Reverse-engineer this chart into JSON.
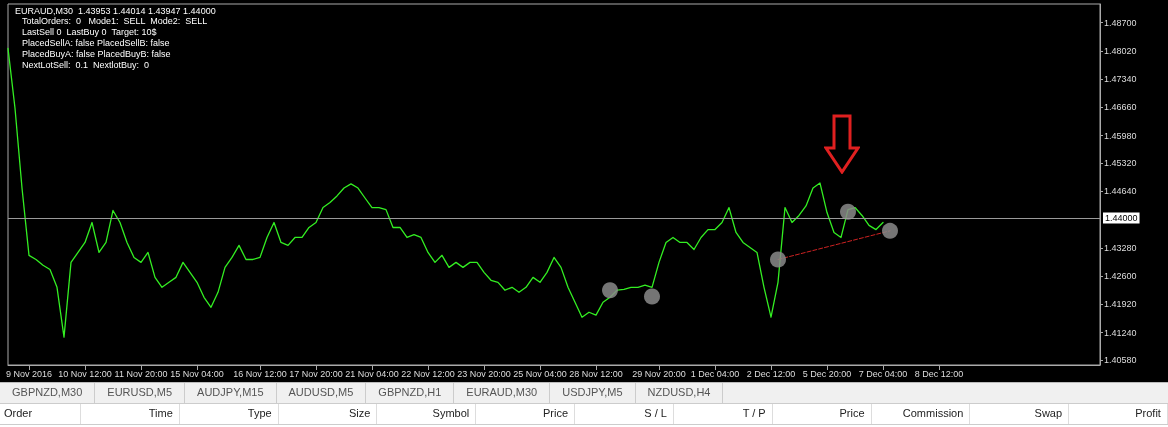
{
  "chart_data": {
    "type": "line",
    "title": "EURAUD,M30  1.43953 1.44014 1.43947 1.44000",
    "annotations": [
      "TotalOrders:  0   Mode1:  SELL  Mode2:  SELL",
      "LastSell 0  LastBuy 0  Target: 10$",
      "PlacedSellA: false PlacedSellB: false",
      "PlacedBuyA: false PlacedBuyB: false",
      "NextLotSell:  0.1  NextlotBuy:  0",
      "GBPNZD,M30",
      "EURUSD,M5",
      "AUDJPY,M15",
      "AUDUSD,M5",
      "GBPNZD,H1",
      "EURAUD,M30",
      "USDJPY,M5",
      "NZDUSD,H4",
      "Order",
      "Time",
      "Type",
      "Size",
      "Symbol",
      "Price",
      "S / L",
      "T / P",
      "Price",
      "Commission",
      "Swap",
      "Profit"
    ],
    "categories": [
      null,
      null,
      null,
      "9 Nov 2016",
      null,
      null,
      null,
      null,
      null,
      null,
      null,
      "10 Nov 12:00",
      null,
      null,
      null,
      null,
      null,
      null,
      null,
      "11 Nov 20:00",
      null,
      null,
      null,
      null,
      null,
      null,
      null,
      "15 Nov 04:00",
      null,
      null,
      null,
      null,
      null,
      null,
      null,
      null,
      "16 Nov 12:00",
      null,
      null,
      null,
      null,
      null,
      null,
      null,
      "17 Nov 20:00",
      null,
      null,
      null,
      null,
      null,
      null,
      null,
      "21 Nov 04:00",
      null,
      null,
      null,
      null,
      null,
      null,
      null,
      "22 Nov 12:00",
      null,
      null,
      null,
      null,
      null,
      null,
      null,
      "23 Nov 20:00",
      null,
      null,
      null,
      null,
      null,
      null,
      null,
      "25 Nov 04:00",
      null,
      null,
      null,
      null,
      null,
      null,
      null,
      "28 Nov 12:00",
      null,
      null,
      null,
      null,
      null,
      null,
      null,
      null,
      "29 Nov 20:00",
      null,
      null,
      null,
      null,
      null,
      null,
      null,
      "1 Dec 04:00",
      null,
      null,
      null,
      null,
      null,
      null,
      null,
      "2 Dec 12:00",
      null,
      null,
      null,
      null,
      null,
      null,
      null,
      "5 Dec 20:00",
      null,
      null,
      null,
      null,
      null,
      null,
      null,
      "7 Dec 04:00",
      null,
      null,
      null,
      null,
      null,
      null,
      null,
      "8 Dec 12:00",
      null,
      null,
      null,
      null,
      null,
      null,
      null,
      null,
      null,
      null,
      null,
      null,
      null,
      null,
      null,
      null,
      null,
      null,
      null,
      null,
      null,
      null,
      null
    ],
    "series": [
      {
        "color": "#33ee22",
        "values": [
          1.4808,
          1.4664,
          1.4472,
          1.431,
          1.43,
          1.4286,
          1.4276,
          1.4233,
          1.4113,
          1.4293,
          1.4317,
          1.4341,
          1.4389,
          1.4317,
          1.4341,
          1.4418,
          1.4389,
          1.4341,
          1.4305,
          1.4293,
          1.4317,
          1.4257,
          1.4233,
          1.4245,
          1.4257,
          1.4293,
          1.4269,
          1.4245,
          1.4209,
          1.4185,
          1.4221,
          1.4281,
          1.4305,
          1.4334,
          1.43,
          1.43,
          1.4305,
          1.4353,
          1.4389,
          1.4341,
          1.4334,
          1.4353,
          1.4353,
          1.4377,
          1.4389,
          1.4425,
          1.4437,
          1.4453,
          1.4472,
          1.4482,
          1.4472,
          1.4448,
          1.4425,
          1.4425,
          1.442,
          1.4377,
          1.4377,
          1.4353,
          1.436,
          1.4353,
          1.4317,
          1.4293,
          1.431,
          1.4281,
          1.4293,
          1.4281,
          1.4293,
          1.4293,
          1.4269,
          1.425,
          1.4245,
          1.4226,
          1.4233,
          1.4221,
          1.4233,
          1.4257,
          1.4245,
          1.4269,
          1.4305,
          1.4281,
          1.4233,
          1.4197,
          1.4161,
          1.4173,
          1.4166,
          1.4197,
          1.4209,
          1.4226,
          1.4228,
          1.4233,
          1.4233,
          1.4238,
          1.4233,
          1.4293,
          1.4341,
          1.4353,
          1.4341,
          1.4341,
          1.4324,
          1.4353,
          1.4372,
          1.4372,
          1.4389,
          1.4425,
          1.4365,
          1.4341,
          1.4329,
          1.4317,
          1.4233,
          1.4161,
          1.4245,
          1.4425,
          1.4389,
          1.4406,
          1.4429,
          1.4472,
          1.4484,
          1.4413,
          1.4365,
          1.4353,
          1.442,
          1.4425,
          1.4406,
          1.4382,
          1.4372,
          1.4389,
          null,
          null,
          null,
          null,
          null,
          null,
          null,
          null,
          null,
          null,
          null,
          null,
          null,
          null,
          null,
          null,
          null,
          null,
          null,
          null,
          null,
          null,
          null,
          null,
          null,
          null,
          null,
          null,
          null,
          null,
          null
        ]
      },
      {
        "type": "line",
        "color": "#cc2222",
        "line_style": "dashed",
        "values": [
          null,
          null,
          null,
          null,
          null,
          null,
          null,
          null,
          null,
          null,
          null,
          null,
          null,
          null,
          null,
          null,
          null,
          null,
          null,
          null,
          null,
          null,
          null,
          null,
          null,
          null,
          null,
          null,
          null,
          null,
          null,
          null,
          null,
          null,
          null,
          null,
          null,
          null,
          null,
          null,
          null,
          null,
          null,
          null,
          null,
          null,
          null,
          null,
          null,
          null,
          null,
          null,
          null,
          null,
          null,
          null,
          null,
          null,
          null,
          null,
          null,
          null,
          null,
          null,
          null,
          null,
          null,
          null,
          null,
          null,
          null,
          null,
          null,
          null,
          null,
          null,
          null,
          null,
          null,
          null,
          null,
          null,
          null,
          null,
          null,
          null,
          null,
          null,
          null,
          null,
          null,
          null,
          null,
          null,
          null,
          null,
          null,
          null,
          null,
          null,
          null,
          null,
          null,
          null,
          null,
          null,
          null,
          null,
          null,
          null,
          1.43,
          null,
          null,
          null,
          null,
          null,
          null,
          null,
          null,
          null,
          null,
          null,
          null,
          null,
          null,
          null,
          1.4369,
          null,
          null,
          null,
          null,
          null,
          null,
          null,
          null,
          null,
          null,
          null,
          null,
          null,
          null,
          null,
          null,
          null,
          null,
          null,
          null,
          null,
          null,
          null,
          null,
          null,
          null,
          null,
          null,
          null,
          null
        ]
      },
      {
        "type": "scatter",
        "marker": "circle",
        "color": "#8a8a8a",
        "values": [
          null,
          null,
          null,
          null,
          null,
          null,
          null,
          null,
          null,
          null,
          null,
          null,
          null,
          null,
          null,
          null,
          null,
          null,
          null,
          null,
          null,
          null,
          null,
          null,
          null,
          null,
          null,
          null,
          null,
          null,
          null,
          null,
          null,
          null,
          null,
          null,
          null,
          null,
          null,
          null,
          null,
          null,
          null,
          null,
          null,
          null,
          null,
          null,
          null,
          null,
          null,
          null,
          null,
          null,
          null,
          null,
          null,
          null,
          null,
          null,
          null,
          null,
          null,
          null,
          null,
          null,
          null,
          null,
          null,
          null,
          null,
          null,
          null,
          null,
          null,
          null,
          null,
          null,
          null,
          null,
          null,
          null,
          null,
          null,
          null,
          null,
          1.4226,
          null,
          null,
          null,
          null,
          null,
          1.4211,
          null,
          null,
          null,
          null,
          null,
          null,
          null,
          null,
          null,
          null,
          null,
          null,
          null,
          null,
          null,
          null,
          null,
          1.43,
          null,
          null,
          null,
          null,
          null,
          null,
          null,
          null,
          null,
          1.4415,
          null,
          null,
          null,
          null,
          null,
          1.4369,
          null,
          null,
          null,
          null,
          null,
          null,
          null,
          null,
          null,
          null,
          null,
          null,
          null,
          null,
          null,
          null,
          null,
          null,
          null,
          null,
          null,
          null,
          null,
          null,
          null,
          null,
          null,
          null,
          null,
          null
        ]
      }
    ],
    "ylim": [
      1.4046,
      1.4915
    ],
    "yticks": [
      {
        "value": 1.4058,
        "label": "1.40580"
      },
      {
        "value": 1.4124,
        "label": "1.41240"
      },
      {
        "value": 1.4192,
        "label": "1.41920"
      },
      {
        "value": 1.426,
        "label": "1.42600"
      },
      {
        "value": 1.4328,
        "label": "1.43280"
      },
      {
        "value": 1.4464,
        "label": "1.44640"
      },
      {
        "value": 1.4532,
        "label": "1.45320"
      },
      {
        "value": 1.4598,
        "label": "1.45980"
      },
      {
        "value": 1.4666,
        "label": "1.46660"
      },
      {
        "value": 1.4734,
        "label": "1.47340"
      },
      {
        "value": 1.4802,
        "label": "1.48020"
      },
      {
        "value": 1.487,
        "label": "1.48700"
      }
    ],
    "ref_lines": [
      {
        "axis": "y",
        "value": 1.44,
        "label": "1.44000",
        "color": "#9a9a9a"
      }
    ],
    "grid": false
  }
}
